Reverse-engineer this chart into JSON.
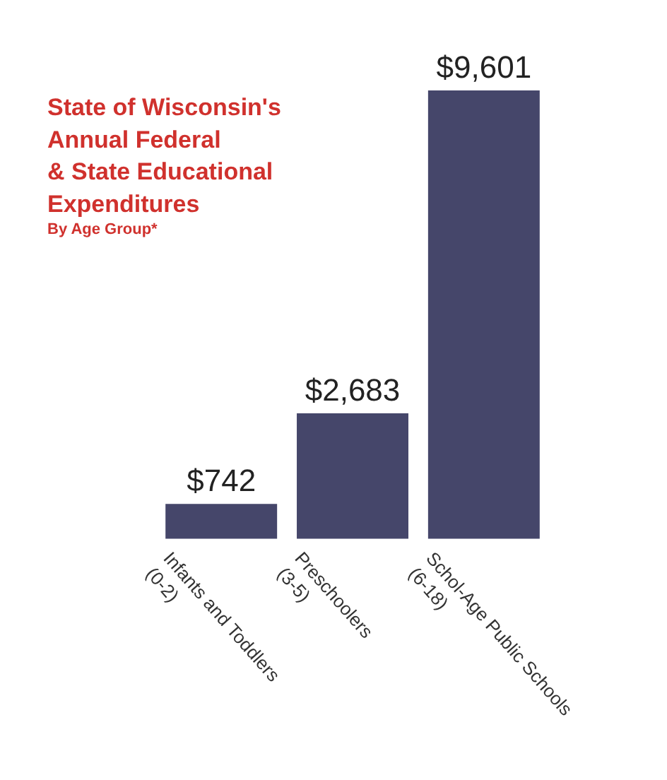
{
  "chart_data": {
    "type": "bar",
    "title": "State of Wisconsin's\nAnnual Federal\n& State Educational\nExpenditures",
    "subtitle": "By Age Group*",
    "categories": [
      "Infants and Toddlers (0-2)",
      "Preschoolers (3-5)",
      "Schol-Age Public Schools (6-18)"
    ],
    "values": [
      742,
      2683,
      9601
    ],
    "value_labels": [
      "$742",
      "$2,683",
      "$9,601"
    ],
    "color": "#45466a"
  }
}
